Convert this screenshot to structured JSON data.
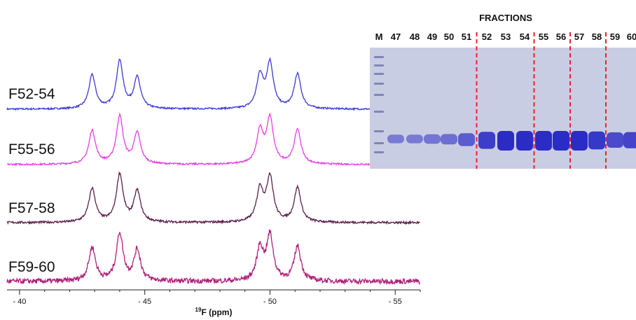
{
  "chart_data": [
    {
      "type": "line",
      "title": "",
      "xlabel_sup": "19",
      "xlabel_main": "F (ppm)",
      "xlim": [
        -39.5,
        -56
      ],
      "x_reversed": true,
      "x_ticks": [
        -40,
        -45,
        -50,
        -55
      ],
      "x_tick_labels": [
        "- 40",
        "- 45",
        "- 50",
        "- 55"
      ],
      "grid": false,
      "peaks_ppm": [
        -42.9,
        -44.0,
        -44.7,
        -49.6,
        -50.0,
        -51.1
      ],
      "peak_heights": [
        0.6,
        0.85,
        0.55,
        0.58,
        0.8,
        0.62
      ],
      "series": [
        {
          "name": "F52-54",
          "color": "#3a3ad6",
          "noise": 0.015,
          "xmax": -54.2
        },
        {
          "name": "F55-56",
          "color": "#e83ee8",
          "noise": 0.015,
          "xmax": -54.2
        },
        {
          "name": "F57-58",
          "color": "#5a1f4a",
          "noise": 0.02,
          "xmax": -56
        },
        {
          "name": "F59-60",
          "color": "#b0207a",
          "noise": 0.045,
          "xmax": -56
        }
      ]
    },
    {
      "type": "other",
      "title": "FRACTIONS",
      "marker_label": "M",
      "lanes": [
        "47",
        "48",
        "49",
        "50",
        "51",
        "52",
        "53",
        "54",
        "55",
        "56",
        "57",
        "58",
        "59",
        "60"
      ],
      "band_intensity": [
        0.35,
        0.35,
        0.4,
        0.45,
        0.6,
        0.85,
        1.0,
        1.0,
        1.0,
        1.0,
        1.0,
        0.9,
        0.75,
        0.8
      ],
      "divider_after": [
        "51",
        "54",
        "56",
        "58"
      ],
      "colors": {
        "gel": "#c9cde3",
        "band": "#2b2cc6",
        "divider": "#e8242b",
        "marker": "#7f86b8"
      }
    }
  ]
}
